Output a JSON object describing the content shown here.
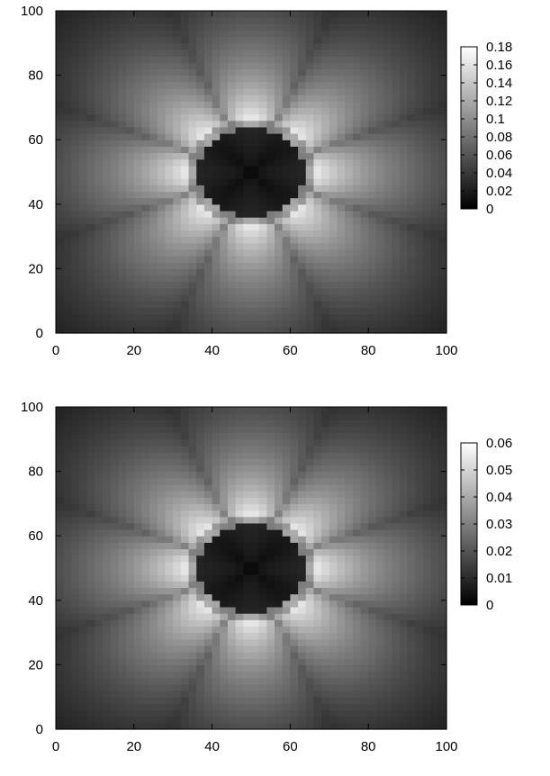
{
  "chart_data": [
    {
      "type": "heatmap",
      "title": "",
      "xlabel": "",
      "ylabel": "",
      "xlim": [
        0,
        100
      ],
      "ylim": [
        0,
        100
      ],
      "x_ticks": [
        "0",
        "20",
        "40",
        "60",
        "80",
        "100"
      ],
      "y_ticks": [
        "0",
        "20",
        "40",
        "60",
        "80",
        "100"
      ],
      "grid": false,
      "colormap": "grayscale",
      "colorbar": {
        "range": [
          0,
          0.18
        ],
        "ticks": [
          "0",
          "0.02",
          "0.04",
          "0.06",
          "0.08",
          "0.1",
          "0.12",
          "0.14",
          "0.16",
          "0.18"
        ],
        "placement": "right"
      },
      "field": {
        "center": [
          50,
          50
        ],
        "inner_radius": 15,
        "lobes": 8,
        "max_value": 0.18
      }
    },
    {
      "type": "heatmap",
      "title": "",
      "xlabel": "",
      "ylabel": "",
      "xlim": [
        0,
        100
      ],
      "ylim": [
        0,
        100
      ],
      "x_ticks": [
        "0",
        "20",
        "40",
        "60",
        "80",
        "100"
      ],
      "y_ticks": [
        "0",
        "20",
        "40",
        "60",
        "80",
        "100"
      ],
      "grid": false,
      "colormap": "grayscale",
      "colorbar": {
        "range": [
          0,
          0.06
        ],
        "ticks": [
          "0",
          "0.01",
          "0.02",
          "0.03",
          "0.04",
          "0.05",
          "0.06"
        ],
        "placement": "right"
      },
      "field": {
        "center": [
          50,
          50
        ],
        "inner_radius": 15,
        "lobes": 8,
        "max_value": 0.06
      }
    }
  ]
}
